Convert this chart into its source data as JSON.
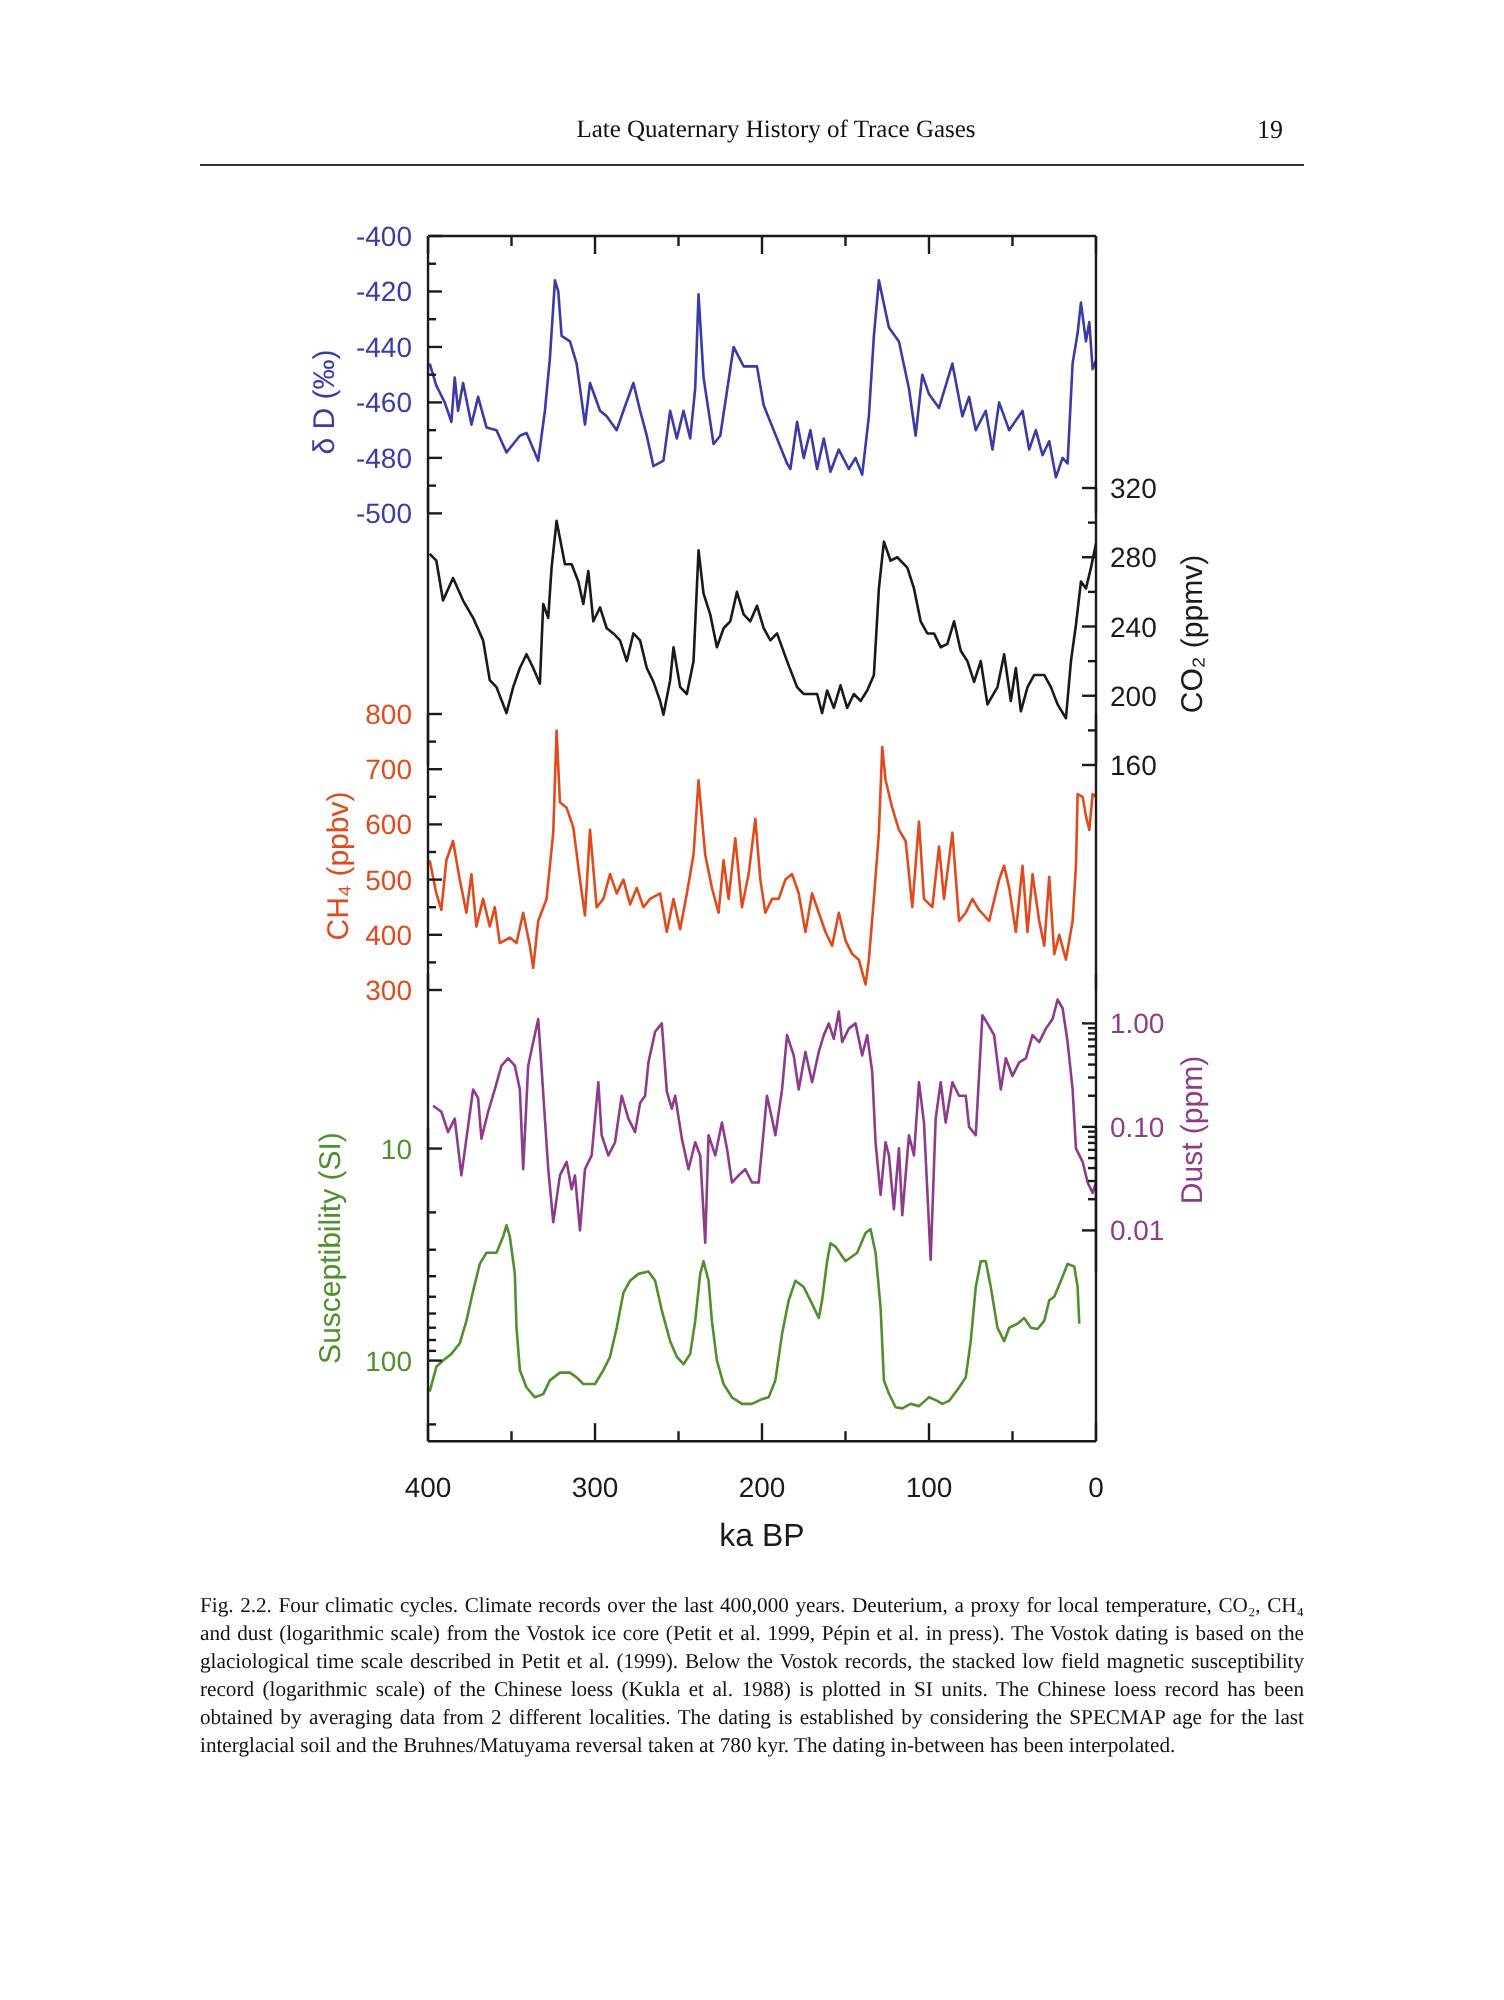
{
  "chart_data": [
    {
      "type": "line",
      "annotations": [
        "Late Quaternary History of Trace Gases",
        "19"
      ],
      "ylabel": "δ D (‰)",
      "x": [
        399,
        395,
        390,
        386,
        384,
        382,
        379,
        374,
        370,
        365,
        359,
        353,
        345,
        341,
        334,
        330,
        327,
        324,
        322,
        320,
        315,
        311,
        306,
        303,
        297,
        293,
        287,
        283,
        277,
        273,
        269,
        265,
        259,
        255,
        251,
        247,
        243,
        240,
        238,
        235,
        229,
        225,
        217,
        211,
        203,
        199,
        193,
        185,
        183,
        179,
        175,
        171,
        167,
        163,
        159,
        154,
        148,
        144,
        140,
        136,
        133,
        130,
        124,
        118,
        112,
        108,
        104,
        100,
        94,
        86,
        80,
        76,
        72,
        66,
        62,
        58,
        52,
        44,
        40,
        36,
        32,
        28,
        24,
        20,
        17,
        14,
        11,
        9,
        6,
        4,
        2,
        0
      ],
      "series": [
        {
          "color": "#3a3aa8",
          "values": [
            -446,
            -454,
            -460,
            -467,
            -451,
            -463,
            -453,
            -468,
            -458,
            -469,
            -470,
            -478,
            -472,
            -471,
            -481,
            -463,
            -444,
            -416,
            -420,
            -436,
            -438,
            -446,
            -468,
            -453,
            -463,
            -465,
            -470,
            -463,
            -453,
            -463,
            -472,
            -483,
            -481,
            -463,
            -473,
            -463,
            -473,
            -455,
            -421,
            -451,
            -475,
            -472,
            -440,
            -447,
            -447,
            -461,
            -470,
            -482,
            -484,
            -467,
            -480,
            -470,
            -484,
            -473,
            -485,
            -477,
            -484,
            -480,
            -486,
            -465,
            -436,
            -416,
            -433,
            -438,
            -455,
            -472,
            -450,
            -457,
            -462,
            -446,
            -465,
            -458,
            -470,
            -463,
            -477,
            -460,
            -470,
            -463,
            -477,
            -470,
            -479,
            -474,
            -487,
            -480,
            -482,
            -446,
            -435,
            -424,
            -438,
            -431,
            -448,
            -445
          ]
        }
      ],
      "xlim": [
        400,
        0
      ],
      "xticks": [
        400,
        {
          "value": 350,
          "label": null
        },
        300,
        {
          "value": 250,
          "label": null
        },
        200,
        {
          "value": 150,
          "label": null
        },
        100,
        {
          "value": 50,
          "label": null
        },
        0
      ],
      "ylim": [
        -500,
        -400
      ],
      "yticks": [
        -400,
        {
          "value": -410,
          "label": null
        },
        -420,
        {
          "value": -430,
          "label": null
        },
        -440,
        {
          "value": -450,
          "label": null
        },
        -460,
        {
          "value": -470,
          "label": null
        },
        -480,
        {
          "value": -490,
          "label": null
        },
        -500
      ],
      "tick_labels": "y"
    },
    {
      "type": "line",
      "y2label": "CO₂ (ppmv)",
      "x": [
        399,
        395,
        391,
        385,
        379,
        373,
        367,
        363,
        359,
        353,
        349,
        345,
        341,
        337,
        333,
        331,
        328,
        326,
        323,
        321,
        318,
        314,
        310,
        307,
        304,
        301,
        297,
        293,
        289,
        285,
        281,
        277,
        273,
        269,
        265,
        261,
        259,
        255,
        253,
        249,
        245,
        241,
        238,
        235,
        231,
        227,
        223,
        219,
        215,
        211,
        207,
        203,
        199,
        195,
        191,
        185,
        179,
        175,
        171,
        167,
        164,
        161,
        157,
        153,
        149,
        145,
        141,
        137,
        133,
        130,
        127,
        123,
        119,
        113,
        109,
        105,
        101,
        97,
        93,
        89,
        85,
        81,
        77,
        73,
        69,
        65,
        59,
        55,
        51,
        48,
        45,
        41,
        37,
        31,
        27,
        23,
        18,
        15,
        12,
        9,
        6,
        3,
        0
      ],
      "series": [
        {
          "color": "#1a1a1a",
          "axis": "y2",
          "values": [
            282,
            278,
            255,
            268,
            255,
            245,
            232,
            209,
            205,
            190,
            205,
            216,
            224,
            216,
            207,
            253,
            245,
            274,
            301,
            291,
            276,
            276,
            266,
            253,
            272,
            243,
            251,
            239,
            236,
            232,
            220,
            236,
            232,
            216,
            208,
            197,
            189,
            209,
            228,
            205,
            201,
            220,
            284,
            259,
            247,
            228,
            239,
            243,
            260,
            247,
            243,
            252,
            239,
            232,
            236,
            220,
            205,
            201,
            201,
            201,
            190,
            203,
            193,
            206,
            193,
            201,
            197,
            203,
            212,
            262,
            289,
            278,
            280,
            274,
            262,
            243,
            236,
            236,
            228,
            230,
            243,
            226,
            220,
            208,
            220,
            195,
            205,
            224,
            197,
            216,
            191,
            205,
            212,
            212,
            205,
            195,
            187,
            220,
            241,
            266,
            262,
            274,
            288
          ]
        }
      ],
      "xlim": [
        400,
        0
      ],
      "y2lim": [
        160,
        320
      ],
      "y2ticks": [
        160,
        {
          "value": 180,
          "label": null
        },
        200,
        {
          "value": 220,
          "label": null
        },
        240,
        {
          "value": 260,
          "label": null
        },
        280,
        {
          "value": 300,
          "label": null
        },
        320
      ],
      "tick_labels": "y2"
    },
    {
      "type": "line",
      "ylabel": "CH₄ (ppbv)",
      "x": [
        399,
        395,
        392,
        389,
        385,
        381,
        377,
        374,
        371,
        367,
        363,
        360,
        357,
        351,
        347,
        343,
        339,
        337,
        334,
        329,
        325,
        323,
        321,
        317,
        313,
        309,
        306,
        303,
        299,
        295,
        291,
        287,
        283,
        279,
        275,
        271,
        267,
        261,
        257,
        253,
        249,
        245,
        241,
        238,
        234,
        230,
        226,
        223,
        220,
        216,
        212,
        208,
        204,
        201,
        198,
        194,
        190,
        186,
        182,
        178,
        174,
        170,
        166,
        162,
        158,
        154,
        150,
        146,
        142,
        138,
        136,
        133,
        130,
        128,
        126,
        122,
        118,
        114,
        110,
        106,
        103,
        98,
        94,
        91,
        86,
        82,
        78,
        74,
        70,
        64,
        58,
        55,
        52,
        48,
        44,
        41,
        38,
        34,
        31,
        28,
        25,
        22,
        18,
        14,
        12,
        11,
        8,
        6,
        4,
        2,
        0
      ],
      "series": [
        {
          "color": "#e04b1d",
          "values": [
            535,
            475,
            445,
            535,
            570,
            500,
            440,
            510,
            415,
            465,
            415,
            450,
            385,
            395,
            385,
            440,
            380,
            340,
            425,
            465,
            585,
            770,
            640,
            630,
            595,
            500,
            435,
            590,
            450,
            465,
            510,
            475,
            500,
            455,
            485,
            450,
            465,
            475,
            405,
            465,
            410,
            475,
            545,
            680,
            545,
            485,
            440,
            535,
            465,
            575,
            450,
            510,
            610,
            500,
            440,
            465,
            465,
            500,
            510,
            475,
            405,
            475,
            440,
            405,
            380,
            440,
            390,
            365,
            355,
            310,
            355,
            465,
            585,
            740,
            680,
            630,
            590,
            570,
            450,
            605,
            465,
            450,
            560,
            465,
            585,
            425,
            440,
            465,
            445,
            425,
            500,
            525,
            485,
            405,
            525,
            405,
            510,
            425,
            380,
            505,
            365,
            400,
            355,
            425,
            525,
            655,
            650,
            615,
            590,
            655,
            650
          ]
        }
      ],
      "xlim": [
        400,
        0
      ],
      "ylim": [
        300,
        800
      ],
      "yticks": [
        300,
        {
          "value": 350,
          "label": null
        },
        400,
        {
          "value": 450,
          "label": null
        },
        500,
        {
          "value": 550,
          "label": null
        },
        600,
        {
          "value": 650,
          "label": null
        },
        700,
        {
          "value": 750,
          "label": null
        },
        800
      ],
      "tick_labels": "y"
    },
    {
      "type": "line",
      "y2label": "Dust (ppm)",
      "log": "y2",
      "x": [
        397,
        392,
        388,
        384,
        380,
        377,
        373,
        370,
        368,
        364,
        360,
        356,
        352,
        348,
        345,
        343,
        340,
        337,
        334,
        332,
        328,
        325,
        321,
        317,
        314,
        312,
        309,
        306,
        302,
        298,
        296,
        292,
        288,
        284,
        280,
        276,
        273,
        270,
        268,
        264,
        260,
        257,
        254,
        252,
        248,
        244,
        240,
        237,
        234,
        232,
        228,
        224,
        221,
        218,
        214,
        210,
        206,
        202,
        200,
        197,
        194,
        192,
        188,
        185,
        181,
        178,
        174,
        170,
        166,
        163,
        160,
        157,
        154,
        152,
        148,
        144,
        140,
        137,
        134,
        132,
        129,
        126,
        124,
        121,
        118,
        116,
        112,
        109,
        106,
        103,
        99,
        96,
        93,
        90,
        86,
        82,
        78,
        76,
        72,
        68,
        65,
        61,
        57,
        54,
        50,
        46,
        42,
        38,
        34,
        30,
        26,
        23,
        20,
        17,
        14,
        12,
        8,
        5,
        2,
        0
      ],
      "series": [
        {
          "color": "#8f3b8c",
          "axis": "y2",
          "values": [
            0.16,
            0.14,
            0.089,
            0.12,
            0.034,
            0.077,
            0.23,
            0.19,
            0.077,
            0.14,
            0.23,
            0.39,
            0.46,
            0.39,
            0.23,
            0.039,
            0.39,
            0.66,
            1.1,
            0.37,
            0.039,
            0.012,
            0.034,
            0.046,
            0.025,
            0.034,
            0.01,
            0.039,
            0.053,
            0.27,
            0.083,
            0.053,
            0.071,
            0.2,
            0.12,
            0.089,
            0.17,
            0.2,
            0.42,
            0.83,
            1.0,
            0.22,
            0.15,
            0.2,
            0.077,
            0.039,
            0.071,
            0.053,
            0.0076,
            0.083,
            0.053,
            0.11,
            0.062,
            0.029,
            0.034,
            0.039,
            0.029,
            0.029,
            0.062,
            0.2,
            0.12,
            0.083,
            0.23,
            0.77,
            0.49,
            0.23,
            0.53,
            0.27,
            0.53,
            0.77,
            1.0,
            0.71,
            1.3,
            0.66,
            0.89,
            1.0,
            0.49,
            0.77,
            0.34,
            0.071,
            0.022,
            0.071,
            0.053,
            0.016,
            0.062,
            0.014,
            0.083,
            0.053,
            0.27,
            0.11,
            0.0052,
            0.12,
            0.27,
            0.11,
            0.27,
            0.2,
            0.2,
            0.1,
            0.083,
            1.2,
            1.0,
            0.77,
            0.23,
            0.46,
            0.31,
            0.42,
            0.46,
            0.77,
            0.66,
            0.89,
            1.1,
            1.7,
            1.4,
            0.66,
            0.23,
            0.062,
            0.046,
            0.029,
            0.023,
            0.029
          ]
        }
      ],
      "xlim": [
        400,
        0
      ],
      "y2lim": [
        0.004,
        3
      ],
      "y2ticks": [
        0.01,
        {
          "value": 0.02,
          "label": null
        },
        {
          "value": 0.03,
          "label": null
        },
        {
          "value": 0.04,
          "label": null
        },
        {
          "value": 0.05,
          "label": null
        },
        {
          "value": 0.06,
          "label": null
        },
        {
          "value": 0.07,
          "label": null
        },
        {
          "value": 0.08,
          "label": null
        },
        {
          "value": 0.09,
          "label": null
        },
        {
          "value": 0.1,
          "label": "0.10"
        },
        {
          "value": 0.2,
          "label": null
        },
        {
          "value": 0.3,
          "label": null
        },
        {
          "value": 0.4,
          "label": null
        },
        {
          "value": 0.5,
          "label": null
        },
        {
          "value": 0.6,
          "label": null
        },
        {
          "value": 0.7,
          "label": null
        },
        {
          "value": 0.8,
          "label": null
        },
        {
          "value": 0.9,
          "label": null
        },
        {
          "value": 1,
          "label": "1.00"
        }
      ],
      "tick_labels": "y2"
    },
    {
      "type": "line",
      "xlabel": "ka BP",
      "ylabel": "Susceptibility (SI)",
      "log": true,
      "annotations": [
        "Fig. 2.2. Four climatic cycles. Climate records over the last 400,000 years. Deuterium, a proxy for local temperature, CO₂, CH₄ and dust (logarithmic scale) from the Vostok ice core (Petit et al. 1999, Pépin et al. in press). The Vostok dating is based on the glaciological time scale described in Petit et al. (1999). Below the Vostok records, the stacked low field magnetic susceptibility record (logarithmic scale) of the Chinese loess (Kukla et al. 1988) is plotted in SI units. The Chinese loess record has been obtained by averaging data from 2 different localities. The dating is established by considering the SPECMAP age for the last interglacial soil and the Bruhnes/Matuyama reversal taken at 780 kyr. The dating in-between has been interpolated."
      ],
      "x": [
        399,
        395,
        391,
        386,
        381,
        377,
        373,
        369,
        365,
        359,
        355,
        353,
        351,
        348,
        347,
        345,
        341,
        336,
        331,
        327,
        321,
        315,
        311,
        307,
        300,
        295,
        291,
        287,
        283,
        279,
        274,
        268,
        264,
        260,
        255,
        251,
        247,
        243,
        240,
        237,
        235,
        232,
        230,
        227,
        223,
        218,
        212,
        206,
        200,
        196,
        192,
        188,
        184,
        180,
        175,
        170,
        166,
        164,
        161,
        159,
        156,
        150,
        143,
        138,
        135,
        132,
        129,
        127,
        124,
        120,
        116,
        111,
        106,
        100,
        95,
        92,
        88,
        82,
        78,
        75,
        72,
        69,
        66,
        63,
        59,
        55,
        52,
        47,
        43,
        39,
        35,
        31,
        28,
        25,
        21,
        17,
        13,
        11,
        10
      ],
      "series": [
        {
          "color": "#4f8f2e",
          "values": [
            140,
            107,
            100,
            93,
            83,
            65,
            47,
            35,
            31,
            31,
            26,
            23,
            26,
            39,
            70,
            111,
            134,
            149,
            144,
            124,
            114,
            114,
            120,
            129,
            129,
            111,
            96,
            70,
            48,
            42,
            39,
            38,
            42,
            58,
            81,
            96,
            104,
            93,
            65,
            39,
            34,
            42,
            65,
            100,
            129,
            149,
            160,
            160,
            152,
            149,
            124,
            75,
            52,
            42,
            45,
            54,
            63,
            52,
            34,
            28,
            29,
            34,
            31,
            25,
            24,
            31,
            56,
            124,
            143,
            166,
            168,
            160,
            164,
            149,
            155,
            160,
            155,
            134,
            120,
            81,
            45,
            34,
            34,
            45,
            70,
            81,
            70,
            67,
            63,
            70,
            71,
            65,
            52,
            50,
            42,
            35,
            36,
            45,
            67
          ]
        }
      ],
      "xlim": [
        400,
        0
      ],
      "xticks": [
        400,
        {
          "value": 350,
          "label": null
        },
        300,
        {
          "value": 250,
          "label": null
        },
        200,
        {
          "value": 150,
          "label": null
        },
        100,
        {
          "value": 50,
          "label": null
        },
        0
      ],
      "ylim": [
        240,
        8
      ],
      "yticks": [
        10,
        {
          "value": 20,
          "label": null
        },
        {
          "value": 30,
          "label": null
        },
        {
          "value": 40,
          "label": null
        },
        {
          "value": 50,
          "label": null
        },
        {
          "value": 60,
          "label": null
        },
        {
          "value": 70,
          "label": null
        },
        {
          "value": 80,
          "label": null
        },
        {
          "value": 90,
          "label": null
        },
        100,
        {
          "value": 200,
          "label": null
        }
      ]
    }
  ]
}
